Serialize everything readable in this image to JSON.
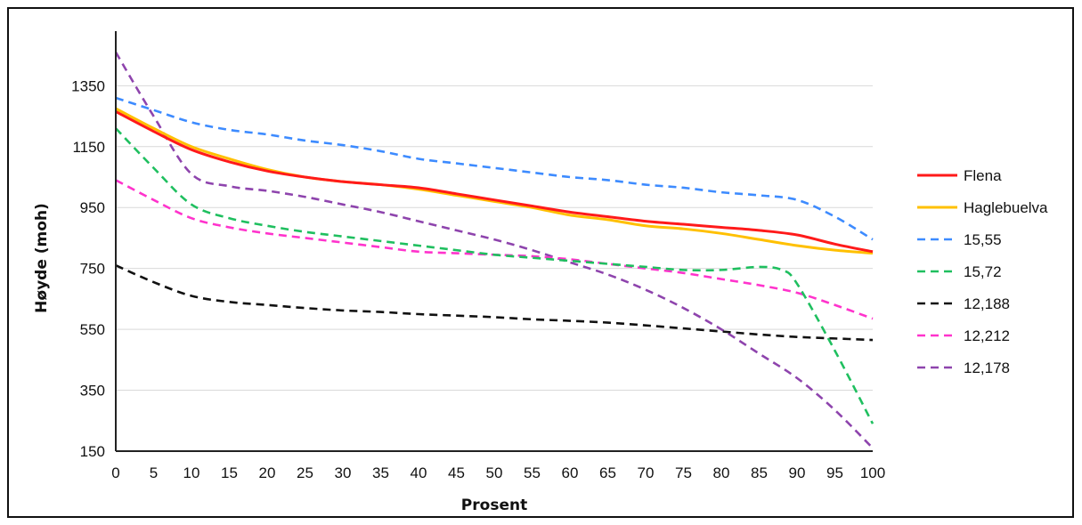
{
  "chart_data": {
    "type": "line",
    "title": "",
    "xlabel": "Prosent",
    "ylabel": "Høyde (moh)",
    "xlim": [
      0,
      100
    ],
    "ylim": [
      150,
      1500
    ],
    "x_ticks": [
      0,
      5,
      10,
      15,
      20,
      25,
      30,
      35,
      40,
      45,
      50,
      55,
      60,
      65,
      70,
      75,
      80,
      85,
      90,
      95,
      100
    ],
    "y_ticks": [
      150,
      350,
      550,
      750,
      950,
      1150,
      1350
    ],
    "grid": "horizontal",
    "legend_position": "right",
    "series": [
      {
        "name": "Flena",
        "color": "#ff1a1a",
        "dash": "solid",
        "x": [
          0,
          5,
          10,
          15,
          20,
          25,
          30,
          35,
          40,
          45,
          50,
          55,
          60,
          65,
          70,
          75,
          80,
          85,
          90,
          95,
          100
        ],
        "y": [
          1265,
          1200,
          1140,
          1100,
          1070,
          1050,
          1035,
          1025,
          1015,
          995,
          975,
          955,
          935,
          920,
          905,
          895,
          885,
          875,
          860,
          830,
          805
        ]
      },
      {
        "name": "Haglebuelva",
        "color": "#ffc000",
        "dash": "solid",
        "x": [
          0,
          5,
          10,
          15,
          20,
          25,
          30,
          35,
          40,
          45,
          50,
          55,
          60,
          65,
          70,
          75,
          80,
          85,
          90,
          95,
          100
        ],
        "y": [
          1275,
          1210,
          1150,
          1110,
          1075,
          1050,
          1035,
          1025,
          1010,
          990,
          970,
          950,
          925,
          910,
          890,
          880,
          865,
          845,
          825,
          810,
          800
        ]
      },
      {
        "name": "15,55",
        "color": "#3d8bff",
        "dash": "dashed",
        "x": [
          0,
          5,
          10,
          15,
          20,
          25,
          30,
          35,
          40,
          45,
          50,
          55,
          60,
          65,
          70,
          75,
          80,
          85,
          90,
          95,
          100
        ],
        "y": [
          1310,
          1270,
          1230,
          1205,
          1190,
          1170,
          1155,
          1135,
          1110,
          1095,
          1080,
          1065,
          1050,
          1040,
          1025,
          1015,
          1000,
          990,
          975,
          920,
          845
        ]
      },
      {
        "name": "15,72",
        "color": "#1fbf5f",
        "dash": "dashed",
        "x": [
          0,
          5,
          10,
          15,
          20,
          25,
          30,
          35,
          40,
          45,
          50,
          55,
          60,
          65,
          70,
          75,
          80,
          85,
          88,
          90,
          95,
          100
        ],
        "y": [
          1210,
          1080,
          960,
          915,
          890,
          870,
          855,
          840,
          825,
          810,
          795,
          785,
          775,
          765,
          755,
          745,
          745,
          755,
          745,
          700,
          480,
          240
        ]
      },
      {
        "name": "12,188",
        "color": "#111111",
        "dash": "dashed",
        "x": [
          0,
          5,
          10,
          15,
          20,
          25,
          30,
          35,
          40,
          45,
          50,
          55,
          60,
          65,
          70,
          75,
          80,
          85,
          90,
          95,
          100
        ],
        "y": [
          760,
          705,
          660,
          640,
          630,
          620,
          612,
          607,
          600,
          595,
          590,
          583,
          578,
          572,
          563,
          553,
          543,
          533,
          525,
          520,
          515
        ]
      },
      {
        "name": "12,212",
        "color": "#ff33cc",
        "dash": "dashed",
        "x": [
          0,
          5,
          10,
          15,
          20,
          25,
          30,
          35,
          40,
          45,
          50,
          55,
          60,
          65,
          70,
          75,
          80,
          85,
          90,
          95,
          100
        ],
        "y": [
          1040,
          975,
          915,
          885,
          865,
          850,
          835,
          820,
          805,
          800,
          795,
          790,
          780,
          765,
          750,
          735,
          715,
          695,
          670,
          630,
          585
        ]
      },
      {
        "name": "12,178",
        "color": "#8e44ad",
        "dash": "dashed",
        "x": [
          0,
          5,
          10,
          15,
          20,
          25,
          30,
          35,
          40,
          45,
          50,
          55,
          60,
          65,
          70,
          75,
          80,
          85,
          90,
          95,
          100
        ],
        "y": [
          1460,
          1250,
          1060,
          1020,
          1005,
          985,
          960,
          935,
          905,
          875,
          845,
          810,
          770,
          730,
          680,
          620,
          550,
          470,
          390,
          285,
          160
        ]
      }
    ]
  }
}
